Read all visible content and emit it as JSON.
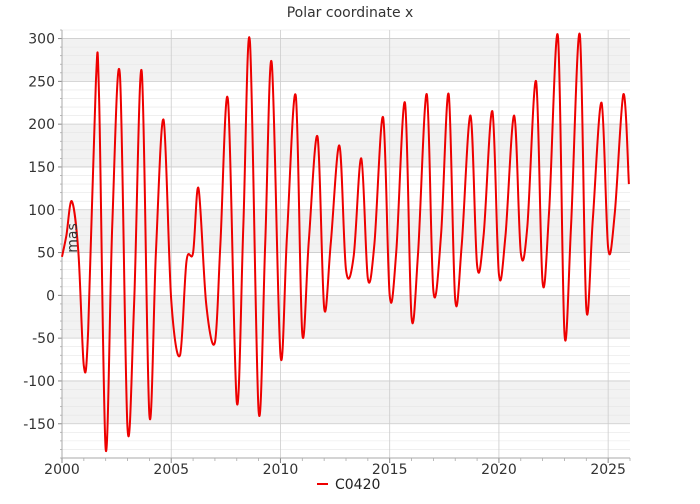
{
  "chart_data": {
    "type": "line",
    "title": "Polar coordinate x",
    "ylabel": "mas",
    "xlabel": "",
    "xlim": [
      2000,
      2026
    ],
    "ylim": [
      -190,
      310
    ],
    "x_ticks": [
      2000,
      2005,
      2010,
      2015,
      2020,
      2025
    ],
    "y_ticks": [
      -150,
      -100,
      -50,
      0,
      50,
      100,
      150,
      200,
      250,
      300
    ],
    "grid": true,
    "legend_position": "bottom-center",
    "series": [
      {
        "name": "C0420",
        "color": "#ee0000",
        "x": [
          2000.0,
          2000.2,
          2000.45,
          2000.75,
          2001.0,
          2001.2,
          2001.55,
          2001.7,
          2002.0,
          2002.3,
          2002.65,
          2003.0,
          2003.3,
          2003.65,
          2004.0,
          2004.3,
          2004.65,
          2005.0,
          2005.4,
          2005.7,
          2006.0,
          2006.25,
          2006.6,
          2007.0,
          2007.25,
          2007.6,
          2008.0,
          2008.3,
          2008.6,
          2009.0,
          2009.3,
          2009.6,
          2010.0,
          2010.3,
          2010.7,
          2011.0,
          2011.3,
          2011.7,
          2012.0,
          2012.3,
          2012.7,
          2013.0,
          2013.35,
          2013.7,
          2014.0,
          2014.3,
          2014.7,
          2015.0,
          2015.3,
          2015.7,
          2016.0,
          2016.3,
          2016.7,
          2017.0,
          2017.35,
          2017.7,
          2018.0,
          2018.3,
          2018.7,
          2019.0,
          2019.3,
          2019.7,
          2020.0,
          2020.3,
          2020.7,
          2021.0,
          2021.3,
          2021.7,
          2022.0,
          2022.3,
          2022.7,
          2023.0,
          2023.3,
          2023.7,
          2024.0,
          2024.3,
          2024.7,
          2025.0,
          2025.3,
          2025.7,
          2025.95
        ],
        "values": [
          45,
          70,
          110,
          50,
          -82,
          -40,
          250,
          230,
          -180,
          80,
          258,
          -155,
          -10,
          262,
          -140,
          50,
          205,
          -5,
          -70,
          40,
          50,
          125,
          -10,
          -55,
          60,
          228,
          -125,
          80,
          297,
          -135,
          60,
          272,
          -70,
          70,
          233,
          -45,
          65,
          185,
          -15,
          60,
          175,
          30,
          45,
          160,
          20,
          60,
          208,
          0,
          50,
          225,
          -25,
          50,
          235,
          5,
          70,
          235,
          -5,
          60,
          210,
          35,
          70,
          215,
          25,
          70,
          210,
          50,
          80,
          250,
          15,
          100,
          303,
          -45,
          80,
          305,
          -15,
          90,
          225,
          55,
          95,
          235,
          130
        ]
      }
    ]
  }
}
